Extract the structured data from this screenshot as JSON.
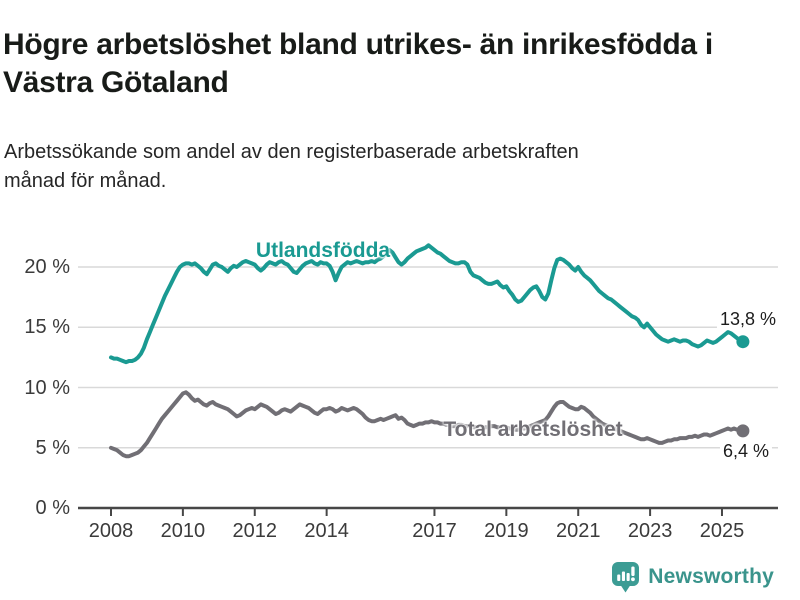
{
  "header": {
    "title": "Högre arbetslöshet bland utrikes- än inrikesfödda i Västra Götaland",
    "subtitle": "Arbetssökande som andel av den registerbaserade arbetskraften månad för månad."
  },
  "footer": {
    "logo_text": "Newsworthy",
    "logo_icon": "newsworthy-bubble-bar-chart-icon",
    "logo_color": "#3a948c",
    "logo_icon_color": "#3c9c94"
  },
  "colors": {
    "series_utlandsfodda": "#1a9a92",
    "series_total": "#716f75",
    "gridline": "#d9d9d9",
    "axis": "#474747",
    "text": "#3b3b3b"
  },
  "chart_data": {
    "type": "line",
    "title": "Högre arbetslöshet bland utrikes- än inrikesfödda i Västra Götaland",
    "subtitle": "Arbetssökande som andel av den registerbaserade arbetskraften månad för månad.",
    "unit": "%",
    "frequency": "monthly",
    "x_start": "2008-01",
    "x_end": "2025-08",
    "ylim": [
      0,
      22.5
    ],
    "grid": "horizontal",
    "y_ticks": [
      {
        "value": 0,
        "label": "0 %"
      },
      {
        "value": 5,
        "label": "5 %"
      },
      {
        "value": 10,
        "label": "10 %"
      },
      {
        "value": 15,
        "label": "15 %"
      },
      {
        "value": 20,
        "label": "20 %"
      }
    ],
    "x_ticks": [
      {
        "year": 2008,
        "label": "2008"
      },
      {
        "year": 2010,
        "label": "2010"
      },
      {
        "year": 2012,
        "label": "2012"
      },
      {
        "year": 2014,
        "label": "2014"
      },
      {
        "year": 2017,
        "label": "2017"
      },
      {
        "year": 2019,
        "label": "2019"
      },
      {
        "year": 2021,
        "label": "2021"
      },
      {
        "year": 2023,
        "label": "2023"
      },
      {
        "year": 2025,
        "label": "2025"
      }
    ],
    "series": [
      {
        "name": "Utlandsfödda",
        "color": "#1a9a92",
        "end_label": "13,8 %",
        "end_value": 13.8,
        "values": [
          12.5,
          12.4,
          12.4,
          12.3,
          12.2,
          12.1,
          12.2,
          12.2,
          12.3,
          12.5,
          12.8,
          13.3,
          14.0,
          14.6,
          15.2,
          15.8,
          16.4,
          17.0,
          17.6,
          18.1,
          18.6,
          19.1,
          19.6,
          20.0,
          20.2,
          20.3,
          20.3,
          20.2,
          20.3,
          20.1,
          19.9,
          19.6,
          19.4,
          19.8,
          20.2,
          20.3,
          20.1,
          20.0,
          19.8,
          19.6,
          19.9,
          20.1,
          20.0,
          20.2,
          20.4,
          20.5,
          20.4,
          20.3,
          20.2,
          19.9,
          19.7,
          19.9,
          20.2,
          20.4,
          20.3,
          20.2,
          20.4,
          20.5,
          20.3,
          20.2,
          19.9,
          19.6,
          19.5,
          19.8,
          20.1,
          20.3,
          20.4,
          20.5,
          20.3,
          20.2,
          20.4,
          20.3,
          20.3,
          20.1,
          19.6,
          18.9,
          19.5,
          20.0,
          20.2,
          20.4,
          20.3,
          20.4,
          20.5,
          20.4,
          20.3,
          20.4,
          20.4,
          20.5,
          20.4,
          20.6,
          20.7,
          20.9,
          21.1,
          21.4,
          21.2,
          20.8,
          20.4,
          20.2,
          20.4,
          20.7,
          20.9,
          21.1,
          21.3,
          21.4,
          21.5,
          21.6,
          21.8,
          21.6,
          21.4,
          21.2,
          21.1,
          20.9,
          20.7,
          20.5,
          20.4,
          20.3,
          20.3,
          20.4,
          20.4,
          20.2,
          19.6,
          19.3,
          19.2,
          19.1,
          18.9,
          18.7,
          18.6,
          18.6,
          18.7,
          18.8,
          18.5,
          18.3,
          18.4,
          18.0,
          17.7,
          17.3,
          17.1,
          17.2,
          17.5,
          17.8,
          18.1,
          18.3,
          18.4,
          18.0,
          17.5,
          17.3,
          17.8,
          18.9,
          19.9,
          20.6,
          20.7,
          20.6,
          20.4,
          20.2,
          19.9,
          19.7,
          20.0,
          19.6,
          19.3,
          19.1,
          18.9,
          18.6,
          18.3,
          18.0,
          17.8,
          17.6,
          17.4,
          17.3,
          17.1,
          16.9,
          16.7,
          16.5,
          16.3,
          16.1,
          15.9,
          15.8,
          15.6,
          15.2,
          15.0,
          15.3,
          15.0,
          14.7,
          14.4,
          14.2,
          14.0,
          13.9,
          13.8,
          13.9,
          14.0,
          13.9,
          13.8,
          13.9,
          13.9,
          13.8,
          13.6,
          13.5,
          13.4,
          13.5,
          13.7,
          13.9,
          13.8,
          13.7,
          13.8,
          14.0,
          14.2,
          14.4,
          14.6,
          14.5,
          14.3,
          14.1,
          13.9,
          13.8
        ]
      },
      {
        "name": "Total arbetslöshet",
        "color": "#716f75",
        "end_label": "6,4 %",
        "end_value": 6.4,
        "values": [
          5.0,
          4.9,
          4.8,
          4.6,
          4.4,
          4.3,
          4.3,
          4.4,
          4.5,
          4.6,
          4.8,
          5.1,
          5.4,
          5.8,
          6.2,
          6.6,
          7.0,
          7.4,
          7.7,
          8.0,
          8.3,
          8.6,
          8.9,
          9.2,
          9.5,
          9.6,
          9.4,
          9.1,
          8.9,
          9.0,
          8.8,
          8.6,
          8.5,
          8.7,
          8.8,
          8.6,
          8.5,
          8.4,
          8.3,
          8.2,
          8.0,
          7.8,
          7.6,
          7.7,
          7.9,
          8.1,
          8.2,
          8.3,
          8.2,
          8.4,
          8.6,
          8.5,
          8.4,
          8.2,
          8.0,
          7.8,
          7.9,
          8.1,
          8.2,
          8.1,
          8.0,
          8.2,
          8.4,
          8.6,
          8.5,
          8.4,
          8.3,
          8.1,
          7.9,
          7.8,
          8.0,
          8.2,
          8.2,
          8.3,
          8.2,
          8.0,
          8.1,
          8.3,
          8.2,
          8.1,
          8.2,
          8.3,
          8.2,
          8.0,
          7.8,
          7.5,
          7.3,
          7.2,
          7.2,
          7.3,
          7.4,
          7.3,
          7.4,
          7.5,
          7.6,
          7.7,
          7.4,
          7.5,
          7.3,
          7.0,
          6.9,
          6.8,
          6.9,
          7.0,
          7.0,
          7.1,
          7.1,
          7.2,
          7.1,
          7.1,
          7.0,
          7.0,
          6.9,
          6.9,
          6.8,
          6.8,
          6.9,
          6.9,
          6.8,
          6.8,
          6.8,
          6.7,
          6.7,
          6.6,
          6.6,
          6.7,
          6.7,
          6.8,
          6.8,
          6.7,
          6.7,
          6.7,
          6.7,
          6.6,
          6.6,
          6.5,
          6.5,
          6.6,
          6.6,
          6.7,
          6.8,
          6.9,
          7.0,
          7.1,
          7.2,
          7.3,
          7.6,
          8.0,
          8.4,
          8.7,
          8.8,
          8.8,
          8.6,
          8.4,
          8.3,
          8.2,
          8.2,
          8.4,
          8.3,
          8.1,
          7.9,
          7.6,
          7.4,
          7.2,
          7.0,
          6.9,
          6.8,
          6.7,
          6.6,
          6.5,
          6.4,
          6.3,
          6.2,
          6.1,
          6.0,
          5.9,
          5.8,
          5.7,
          5.7,
          5.8,
          5.7,
          5.6,
          5.5,
          5.4,
          5.4,
          5.5,
          5.6,
          5.6,
          5.7,
          5.7,
          5.8,
          5.8,
          5.8,
          5.9,
          5.9,
          6.0,
          5.9,
          6.0,
          6.1,
          6.1,
          6.0,
          6.1,
          6.2,
          6.3,
          6.4,
          6.5,
          6.6,
          6.5,
          6.6,
          6.5,
          6.4,
          6.4
        ]
      }
    ]
  }
}
